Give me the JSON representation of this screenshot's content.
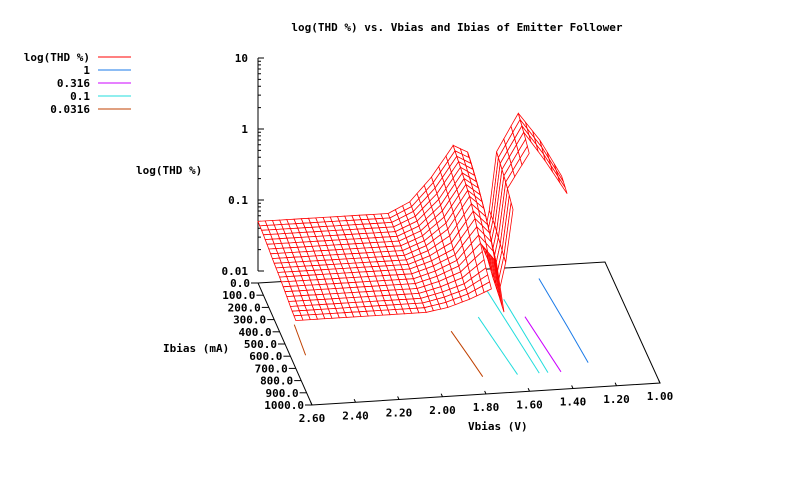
{
  "chart_data": {
    "type": "surface",
    "title": "log(THD %) vs. Vbias and Ibias of Emitter Follower",
    "xlabel": "Vbias (V)",
    "ylabel": "Ibias (mA)",
    "zlabel": "log(THD %)",
    "xlim": [
      2.6,
      1.0
    ],
    "ylim": [
      0,
      1000
    ],
    "zlim": [
      0.01,
      10
    ],
    "zscale": "log",
    "x_ticks": [
      "2.60",
      "2.40",
      "2.20",
      "2.00",
      "1.80",
      "1.60",
      "1.40",
      "1.20",
      "1.00"
    ],
    "y_ticks": [
      "0.0",
      "100.0",
      "200.0",
      "300.0",
      "400.0",
      "500.0",
      "600.0",
      "700.0",
      "800.0",
      "900.0",
      "1000.0"
    ],
    "z_ticks": [
      "0.01",
      "0.1",
      "1",
      "10"
    ],
    "legend_position": "top-left",
    "legend": [
      {
        "label": "log(THD %)",
        "color": "#ff0000"
      },
      {
        "label": "1",
        "color": "#1a7ae8"
      },
      {
        "label": "0.316",
        "color": "#cc00ff"
      },
      {
        "label": "0.1",
        "color": "#22dddd"
      },
      {
        "label": "0.0316",
        "color": "#c04000"
      }
    ],
    "surface": {
      "vbias": [
        2.6,
        2.4,
        2.2,
        2.0,
        1.9,
        1.8,
        1.7,
        1.62,
        1.56,
        1.5,
        1.4,
        1.3,
        1.2,
        1.1,
        1.0
      ],
      "ibias": [
        0,
        100,
        200,
        300,
        400,
        500,
        600,
        700
      ],
      "thd_percent": [
        [
          0.05,
          0.05,
          0.05,
          0.05,
          0.07,
          0.15,
          0.4,
          0.3,
          0.01,
          0.3,
          1.0,
          0.4,
          0.12,
          0.09,
          0.08
        ],
        [
          0.048,
          0.048,
          0.048,
          0.048,
          0.065,
          0.13,
          0.35,
          0.25,
          0.01,
          0.25,
          0.8,
          0.3,
          0.1,
          null,
          null
        ],
        [
          0.045,
          0.045,
          0.045,
          0.045,
          0.06,
          0.11,
          0.3,
          0.2,
          0.008,
          0.2,
          0.6,
          null,
          null,
          null,
          null
        ],
        [
          0.042,
          0.042,
          0.042,
          0.042,
          0.055,
          0.09,
          0.25,
          0.15,
          0.007,
          0.15,
          null,
          null,
          null,
          null,
          null
        ],
        [
          0.04,
          0.04,
          0.04,
          0.04,
          0.05,
          0.07,
          0.18,
          0.1,
          0.006,
          null,
          null,
          null,
          null,
          null,
          null
        ],
        [
          0.037,
          0.037,
          0.037,
          0.037,
          0.045,
          0.06,
          0.12,
          0.06,
          null,
          null,
          null,
          null,
          null,
          null,
          null
        ],
        [
          0.034,
          0.034,
          0.034,
          0.034,
          0.04,
          0.05,
          0.08,
          null,
          null,
          null,
          null,
          null,
          null,
          null,
          null
        ],
        [
          0.032,
          0.032,
          0.032,
          0.032,
          0.036,
          0.045,
          0.06,
          null,
          null,
          null,
          null,
          null,
          null,
          null,
          null
        ]
      ]
    },
    "contours": [
      {
        "level": "0.0316",
        "paths": [
          [
            [
              2.52,
              350
            ],
            [
              2.53,
              600
            ]
          ],
          [
            [
              1.83,
              480
            ],
            [
              1.8,
              700
            ],
            [
              1.78,
              860
            ]
          ]
        ]
      },
      {
        "level": "0.1",
        "paths": [
          [
            [
              1.68,
              380
            ],
            [
              1.62,
              860
            ]
          ],
          [
            [
              1.59,
              150
            ],
            [
              1.52,
              860
            ]
          ],
          [
            [
              1.53,
              250
            ],
            [
              1.48,
              860
            ]
          ]
        ]
      },
      {
        "level": "0.316",
        "paths": [
          [
            [
              1.47,
              400
            ],
            [
              1.42,
              860
            ]
          ]
        ]
      },
      {
        "level": "1",
        "paths": [
          [
            [
              1.33,
              100
            ],
            [
              1.3,
              500
            ],
            [
              1.28,
              800
            ]
          ]
        ]
      }
    ]
  }
}
